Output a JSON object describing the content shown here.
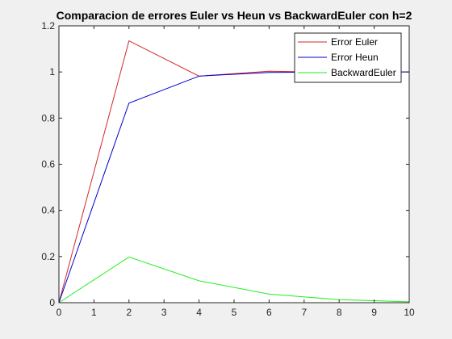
{
  "chart_data": {
    "type": "line",
    "title": "Comparacion de errores Euler vs Heun vs BackwardEuler con h=2",
    "xlabel": "",
    "ylabel": "",
    "xlim": [
      0,
      10
    ],
    "ylim": [
      0,
      1.2
    ],
    "xticks": [
      "0",
      "1",
      "2",
      "3",
      "4",
      "5",
      "6",
      "7",
      "8",
      "9",
      "10"
    ],
    "yticks": [
      "0",
      "0.2",
      "0.4",
      "0.6",
      "0.8",
      "1",
      "1.2"
    ],
    "grid": false,
    "legend_position": "top-right",
    "x": [
      0,
      2,
      4,
      6,
      8,
      10
    ],
    "series": [
      {
        "name": "Error Euler",
        "color": "#d62728",
        "values": [
          0,
          1.135,
          0.982,
          1.003,
          0.999,
          1.0
        ]
      },
      {
        "name": "Error Heun",
        "color": "#0000cc",
        "values": [
          0,
          0.865,
          0.982,
          0.998,
          1.0,
          1.0
        ]
      },
      {
        "name": "BackwardEuler",
        "color": "#22ee22",
        "values": [
          0,
          0.198,
          0.095,
          0.037,
          0.013,
          0.004
        ]
      }
    ]
  }
}
